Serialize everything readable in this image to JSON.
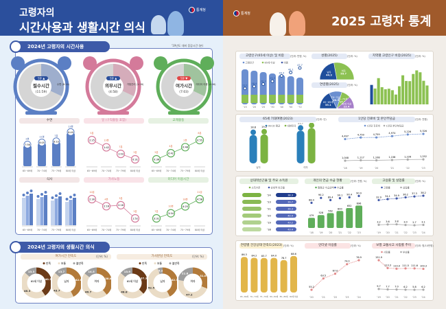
{
  "left": {
    "title_line1": "고령자의",
    "title_line2": "시간사용과 생활시간 의식",
    "agency": "통계청",
    "section1": {
      "title": "2024년 고령자의 시간사용",
      "note": "'19년도 대비 증감시간 (분)",
      "clocks": [
        {
          "label": "필수시간",
          "time": "(11:59)",
          "change": "1분 ▲",
          "color": "#5b7fc4",
          "side": "수면 (8:14)"
        },
        {
          "label": "의무시간",
          "time": "(4:58)",
          "change": "1분 ▲",
          "color": "#d47a9a",
          "side": "가정관리 (1:26)"
        },
        {
          "label": "여가시간",
          "time": "(7:03)",
          "change": "1분 ▼",
          "color": "#5fae5a",
          "side": "미디어 이용 (4:06)"
        }
      ],
      "age_groups": [
        "65~69세",
        "70~74세",
        "75~79세",
        "80세 이상"
      ],
      "charts": [
        {
          "title": "수면",
          "color": "#5b7fc4",
          "tint": "#f3e6e6",
          "kind": "bar",
          "values": [
            "7:56",
            "8:05",
            "8:10",
            "8:49"
          ],
          "changes": [
            "2분",
            "11분",
            "7분",
            "13분"
          ]
        },
        {
          "title": "일 (구직활동 포함)",
          "color": "#d47a9a",
          "tint": "#f9e3e8",
          "kind": "line",
          "values": [
            "2:25",
            "1:42",
            "1:03",
            "0:31"
          ],
          "changes": [
            "5분",
            "13분",
            "7분",
            "3분"
          ]
        },
        {
          "title": "교제활동",
          "color": "#5fae5a",
          "tint": "#e6f1e2",
          "kind": "line",
          "values": [
            "0:36",
            "0:42",
            "0:48",
            "0:55"
          ],
          "changes": [
            "5분",
            "4분",
            "2분",
            "8분"
          ]
        },
        {
          "title": "식사",
          "color": "#5b7fc4",
          "tint": "#f3e6e6",
          "kind": "bar3",
          "values": [
            "",
            "",
            "",
            ""
          ],
          "changes": [
            "",
            "",
            "",
            ""
          ]
        },
        {
          "title": "가사노동",
          "color": "#d47a9a",
          "tint": "#f9e3e8",
          "kind": "line",
          "values": [
            "2:30",
            "2:16",
            "2:18",
            "1:52"
          ],
          "changes": [
            "10분",
            "4분",
            "3분",
            "3분"
          ]
        },
        {
          "title": "미디어 이용시간",
          "color": "#5fae5a",
          "tint": "#e6f1e2",
          "kind": "line",
          "values": [
            "3:31",
            "3:54",
            "4:25",
            "4:58"
          ],
          "changes": [
            "7분",
            "10분",
            "18분",
            "21분"
          ]
        }
      ]
    },
    "section2": {
      "title": "2024년 고령자의 생활시간 의식",
      "legend": [
        "만족",
        "보통",
        "불만족"
      ],
      "unit": "(단위: %)",
      "groups": [
        {
          "title": "여가시간 만족도",
          "donuts": [
            {
              "label": "65세 이상",
              "values": [
                40.3,
                46.3,
                13.3
              ]
            },
            {
              "label": "남자",
              "values": [
                42.6,
                43.7,
                13.7
              ]
            },
            {
              "label": "여자",
              "values": [
                38.8,
                46.7,
                14.5
              ]
            }
          ]
        },
        {
          "title": "가사분담 만족도",
          "donuts": [
            {
              "label": "65세 이상",
              "values": [
                37.3,
                48.8,
                13.9
              ]
            },
            {
              "label": "남자",
              "values": [
                42.3,
                52.5,
                5.2
              ]
            },
            {
              "label": "여자",
              "values": [
                31.0,
                47.2,
                21.8
              ]
            }
          ]
        }
      ]
    }
  },
  "right": {
    "title": "2025 고령자 통계",
    "agency": "통계청",
    "cards": [
      {
        "title": "고령인구(65세 이상) 및 비중",
        "unit": "(단위: 만명, %)",
        "legend": [
          "고령인구",
          "65세 이상",
          "비중"
        ],
        "kind": "stackline",
        "categories": [
          "'15",
          "'20",
          "'25",
          "'30",
          "'40",
          "'50",
          "'72"
        ],
        "values": [
          13.1,
          16.4,
          20.3,
          25.3,
          34.3,
          40.1,
          47.7
        ],
        "color": "#6b8fd0",
        "color2": "#8cc152"
      },
      {
        "title": "성별(2025)",
        "unit": "(단위: %)",
        "kind": "half",
        "labels": [
          "남자",
          "여자"
        ],
        "values": [
          44.3,
          55.7
        ],
        "colors": [
          "#1f4e9c",
          "#8cc152"
        ]
      },
      {
        "title": "연령별(2025)",
        "unit": "(단위: %)",
        "kind": "half",
        "labels": [
          "65~69세",
          "70~74세",
          "75~79세",
          "80세 이상"
        ],
        "values": [
          35.1,
          24.3,
          17.2,
          23.4
        ],
        "colors": [
          "#1f4e9c",
          "#6b8fd0",
          "#8cc152",
          "#a67fc9"
        ]
      },
      {
        "title": "지역별 고령인구 비중(2025)",
        "unit": "(단위: %)",
        "kind": "region",
        "values": [
          20.3,
          18.4,
          23.9,
          19.1,
          18.0,
          18.3,
          17.5,
          15.2,
          19.6,
          25.4,
          22.4,
          22.3,
          26.1,
          28.0,
          27.0,
          22.5,
          20.0
        ],
        "color": "#8cc152",
        "color2": "#1f4e9c"
      },
      {
        "title": "65세 기대여명(2023)",
        "unit": "(단위: 년)",
        "kind": "people",
        "legend": [
          "OECD 평균",
          "대한민국"
        ],
        "labels": [
          "남자",
          "여자"
        ],
        "values": [
          [
            18.8,
            19.2
          ],
          [
            21.7,
            23.4
          ]
        ],
        "colors": [
          "#2a7fba",
          "#7cb342"
        ]
      },
      {
        "title": "1인당 진료비 및 본인부담금",
        "unit": "(단위: 천원)",
        "kind": "lines",
        "legend": [
          "1인당 진료비",
          "1인당 본인부담금"
        ],
        "categories": [
          "'18",
          "'19",
          "'20",
          "'21",
          "'22",
          "'23"
        ],
        "series": [
          [
            4497,
            4750,
            4759,
            4974,
            5226,
            5326
          ],
          [
            1048,
            1117,
            1108,
            1158,
            1226,
            1252
          ]
        ],
        "labels": [
          [
            "4,497",
            "4,750",
            "4,759",
            "4,974",
            "5,226",
            "5,326"
          ],
          [
            "1,048",
            "1,117",
            "1,108",
            "1,158",
            "1,226",
            "1,252"
          ]
        ],
        "colors": [
          "#6b8fd0",
          "#aaaaaa"
        ]
      },
      {
        "title": "상대적빈곤율 및 주요 소득원",
        "unit": "",
        "kind": "hbar",
        "legend": [
          "소득수준",
          "상대적 빈곤율"
        ],
        "years": [
          "'24",
          "'23",
          "'21",
          "'20",
          "'19",
          "'18"
        ],
        "values": [
          38.3,
          39.7,
          39.3,
          40.4,
          43.2,
          43.4
        ],
        "colors": [
          "#7cb342",
          "#3e56a8"
        ]
      },
      {
        "title": "개인의 연금 수급 현황",
        "unit": "(단위: 천원, %)",
        "kind": "barline",
        "legend": [
          "월평균 수급금액",
          "수급률"
        ],
        "categories": [
          "'18",
          "'19",
          "'20",
          "'21",
          "'22",
          "'23"
        ],
        "bars": [
          479,
          528,
          562,
          600,
          652,
          696
        ],
        "line": [
          88.4,
          90.2,
          89.4,
          90.1,
          90.4,
          90.9
        ],
        "colors": [
          "#5fae5a",
          "#3e56a8"
        ]
      },
      {
        "title": "고용률 및 실업률",
        "unit": "(단위: %)",
        "kind": "lines",
        "legend": [
          "고용률",
          "실업률"
        ],
        "categories": [
          "'19",
          "'20",
          "'21",
          "'22",
          "'23",
          "'24"
        ],
        "series": [
          [
            32.9,
            34.1,
            34.9,
            36.2,
            37.3,
            38.2
          ],
          [
            3.2,
            3.6,
            3.8,
            3.0,
            2.7,
            3.1
          ]
        ],
        "labels": [
          [
            "32.9",
            "34.1",
            "34.9",
            "36.2",
            "37.3",
            "38.2"
          ],
          [
            "3.2",
            "3.6",
            "3.8",
            "3.0",
            "2.7",
            "3.1"
          ]
        ],
        "colors": [
          "#3e56a8",
          "#aaaaaa"
        ]
      },
      {
        "title": "연령별 건강상태 만족도(2023)",
        "unit": "(단위: %)",
        "kind": "ybar",
        "categories": [
          "65~69세",
          "70~74세",
          "75~79세",
          "80~84세",
          "85~89세",
          "90세 이상"
        ],
        "values": [
          86.3,
          84.2,
          83.7,
          84.0,
          78.7,
          88.6
        ],
        "color": "#e2b64a"
      },
      {
        "title": "인터넷 이용률",
        "unit": "(단위: %)",
        "kind": "lines",
        "legend": [],
        "categories": [
          "'20",
          "'21",
          "'22",
          "'23",
          "'24"
        ],
        "series": [
          [
            55.2,
            63.5,
            67.0,
            74.0,
            76.9
          ]
        ],
        "labels": [
          [
            "55.2",
            "63.5",
            "67.0",
            "74.0",
            "76.9"
          ]
        ],
        "colors": [
          "#e28a8a"
        ]
      },
      {
        "title": "보행 교통사고 사망률 추이",
        "unit": "(단위: 명/10만명)",
        "kind": "lines",
        "legend": [
          "사망률",
          "부상률"
        ],
        "categories": [
          "'19",
          "'20",
          "'21",
          "'22",
          "'23",
          "'24"
        ],
        "series": [
          [
            151.9,
            113.3,
            110.0,
            111.5,
            111.6,
            109.3
          ],
          [
            9.7,
            7.7,
            7.0,
            6.2,
            5.8,
            6.2
          ]
        ],
        "labels": [
          [
            "151.9",
            "113.3",
            "110.0",
            "111.5",
            "111.6",
            "109.3"
          ],
          [
            "9.7",
            "7.7",
            "7.0",
            "6.2",
            "5.8",
            "6.2"
          ]
        ],
        "colors": [
          "#e28a8a",
          "#aaaaaa"
        ]
      }
    ]
  }
}
